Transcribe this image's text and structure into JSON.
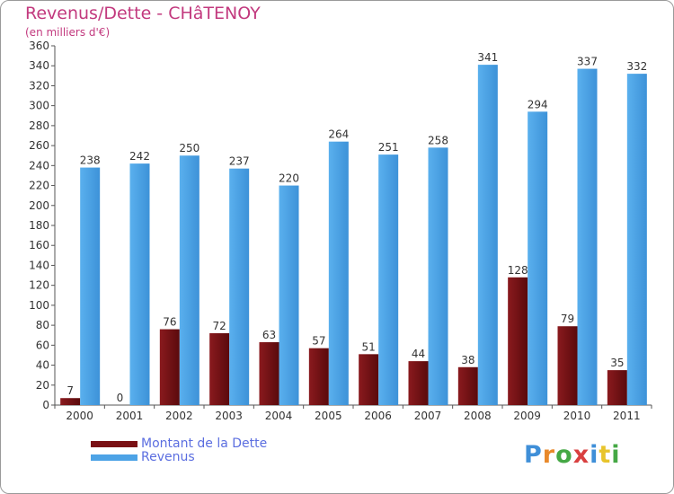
{
  "chart_data": {
    "type": "bar",
    "title": "Revenus/Dette - CHâTENOY",
    "subtitle": "(en milliers d'€)",
    "categories": [
      "2000",
      "2001",
      "2002",
      "2003",
      "2004",
      "2005",
      "2006",
      "2007",
      "2008",
      "2009",
      "2010",
      "2011"
    ],
    "series": [
      {
        "name": "Montant de la Dette",
        "values": [
          7,
          0,
          76,
          72,
          63,
          57,
          51,
          44,
          38,
          128,
          79,
          35
        ],
        "color": "#7a1014"
      },
      {
        "name": "Revenus",
        "values": [
          238,
          242,
          250,
          237,
          220,
          264,
          251,
          258,
          341,
          294,
          337,
          332
        ],
        "color": "#4da3e6"
      }
    ],
    "ylim": [
      0,
      360
    ],
    "yticks": [
      0,
      20,
      40,
      60,
      80,
      100,
      120,
      140,
      160,
      180,
      200,
      220,
      240,
      260,
      280,
      300,
      320,
      340,
      360
    ],
    "grid": false,
    "legend": "bottom-left"
  },
  "brand": {
    "letters": [
      "P",
      "r",
      "o",
      "x",
      "i",
      "t",
      "i"
    ],
    "colors": [
      "#3f8fd8",
      "#e8892b",
      "#45a845",
      "#d94040",
      "#3f8fd8",
      "#e8c42b",
      "#45a845"
    ]
  }
}
